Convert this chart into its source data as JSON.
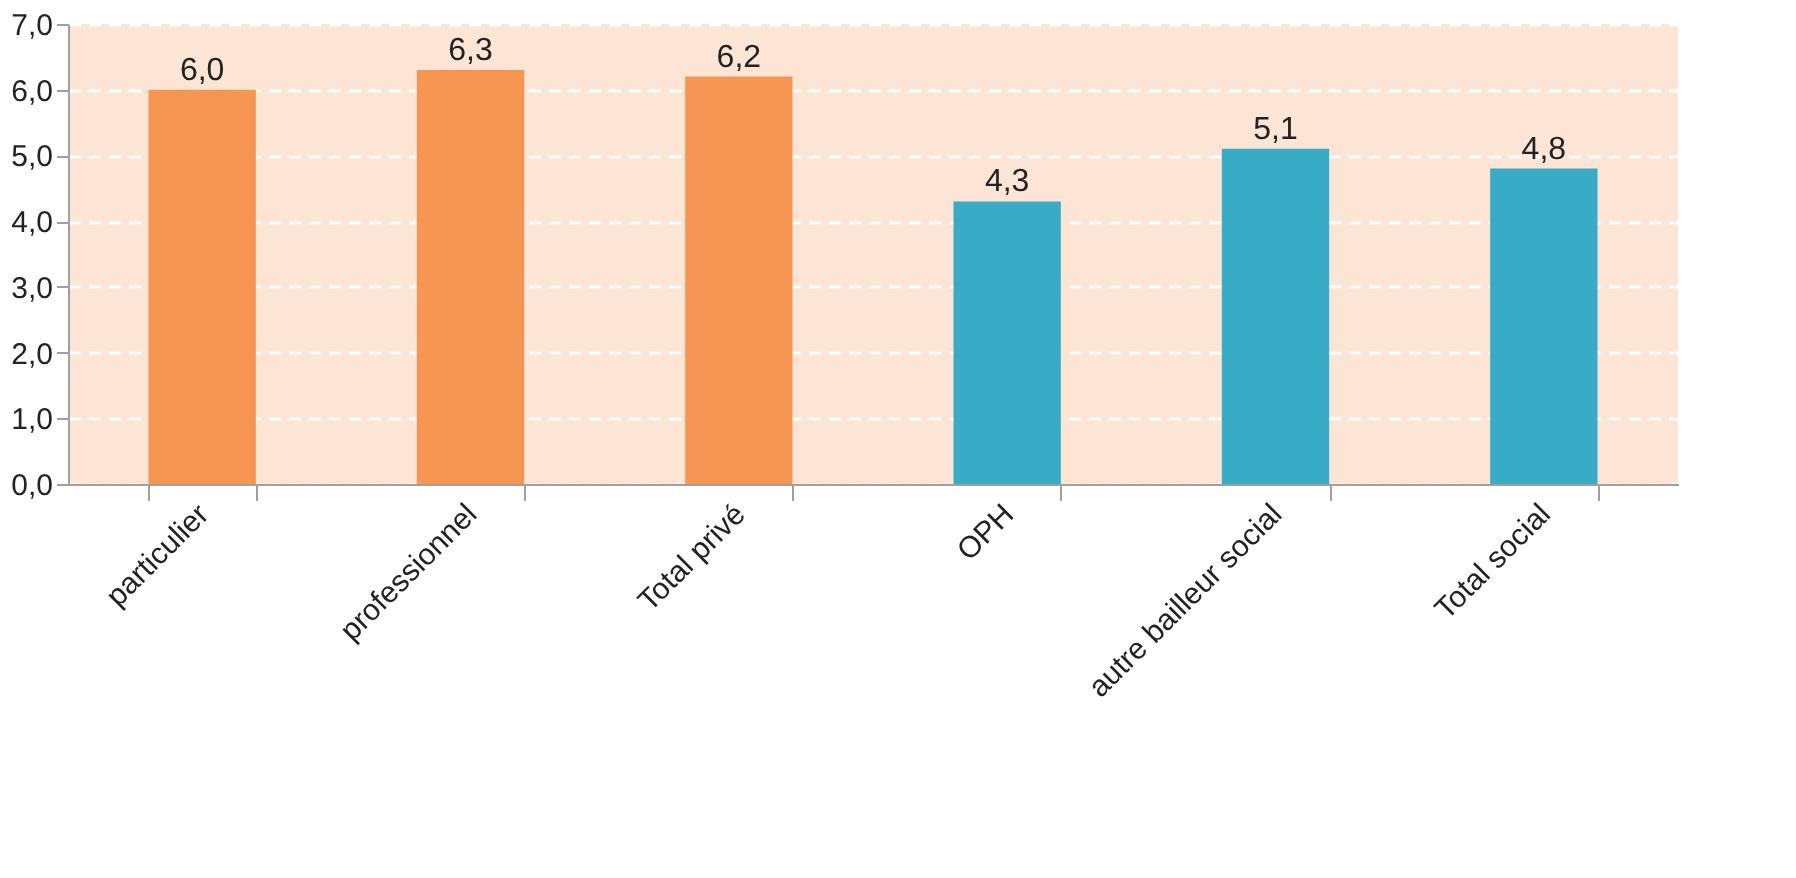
{
  "chart_data": {
    "type": "bar",
    "categories": [
      "particulier",
      "professionnel",
      "Total privé",
      "OPH",
      "autre bailleur social",
      "Total social"
    ],
    "values": [
      6.0,
      6.3,
      6.2,
      4.3,
      5.1,
      4.8
    ],
    "colors": [
      "#f79552",
      "#f79552",
      "#f79552",
      "#38acc6",
      "#38acc6",
      "#38acc6"
    ],
    "value_labels": [
      "6,0",
      "6,3",
      "6,2",
      "4,3",
      "5,1",
      "4,8"
    ],
    "ylim": [
      0,
      7
    ],
    "yticks": [
      {
        "value": 0,
        "label": "0,0"
      },
      {
        "value": 1,
        "label": "1,0"
      },
      {
        "value": 2,
        "label": "2,0"
      },
      {
        "value": 3,
        "label": "3,0"
      },
      {
        "value": 4,
        "label": "4,0"
      },
      {
        "value": 5,
        "label": "5,0"
      },
      {
        "value": 6,
        "label": "6,0"
      },
      {
        "value": 7,
        "label": "7,0"
      }
    ],
    "grid": "y"
  }
}
